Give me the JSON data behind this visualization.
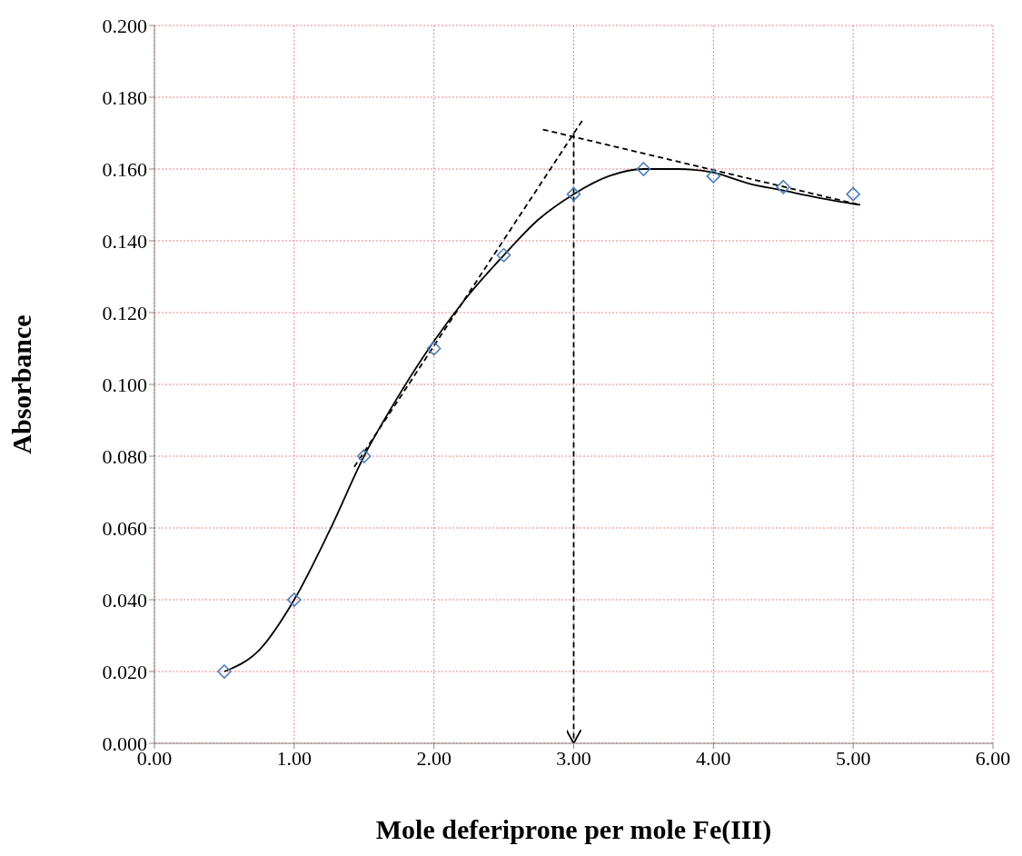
{
  "chart_data": {
    "type": "scatter",
    "xlabel": "Mole deferiprone per mole  Fe(III)",
    "ylabel": "Absorbance",
    "xlim": [
      0,
      6
    ],
    "ylim": [
      0,
      0.2
    ],
    "xticks": [
      {
        "value": 0,
        "label": "0.00"
      },
      {
        "value": 1,
        "label": "1.00"
      },
      {
        "value": 2,
        "label": "2.00"
      },
      {
        "value": 3,
        "label": "3.00"
      },
      {
        "value": 4,
        "label": "4.00"
      },
      {
        "value": 5,
        "label": "5.00"
      },
      {
        "value": 6,
        "label": "6.00"
      }
    ],
    "yticks": [
      {
        "value": 0,
        "label": "0.000"
      },
      {
        "value": 0.02,
        "label": "0.020"
      },
      {
        "value": 0.04,
        "label": "0.040"
      },
      {
        "value": 0.06,
        "label": "0.060"
      },
      {
        "value": 0.08,
        "label": "0.080"
      },
      {
        "value": 0.1,
        "label": "0.100"
      },
      {
        "value": 0.12,
        "label": "0.120"
      },
      {
        "value": 0.14,
        "label": "0.140"
      },
      {
        "value": 0.16,
        "label": "0.160"
      },
      {
        "value": 0.18,
        "label": "0.180"
      },
      {
        "value": 0.2,
        "label": "0.200"
      }
    ],
    "grid": true,
    "series": [
      {
        "marker": "diamond",
        "color": "#4a7ebb",
        "x": [
          0.5,
          1,
          1.5,
          2,
          2.5,
          3,
          3.5,
          4,
          4.5,
          5
        ],
        "values": [
          0.02,
          0.04,
          0.08,
          0.11,
          0.136,
          0.153,
          0.16,
          0.158,
          0.155,
          0.153
        ]
      },
      {
        "type": "line",
        "marker": "none",
        "line_style": "solid",
        "color": "#000000",
        "x": [
          0.5,
          0.75,
          1,
          1.25,
          1.5,
          1.75,
          2,
          2.25,
          2.5,
          2.75,
          3,
          3.25,
          3.5,
          3.75,
          4,
          4.25,
          4.5,
          4.75,
          5.05
        ],
        "values": [
          0.02,
          0.026,
          0.04,
          0.059,
          0.08,
          0.097,
          0.112,
          0.125,
          0.136,
          0.146,
          0.153,
          0.158,
          0.16,
          0.16,
          0.159,
          0.156,
          0.154,
          0.152,
          0.15
        ]
      },
      {
        "type": "line",
        "marker": "none",
        "line_style": "dashed",
        "color": "#000000",
        "x": [
          1.43,
          3.07
        ],
        "values": [
          0.077,
          0.174
        ]
      },
      {
        "type": "line",
        "marker": "none",
        "line_style": "dashed",
        "color": "#000000",
        "x": [
          2.78,
          5.05
        ],
        "values": [
          0.171,
          0.15
        ]
      },
      {
        "type": "line",
        "marker": "none",
        "line_style": "dashed",
        "color": "#000000",
        "x": [
          3,
          3
        ],
        "values": [
          0.17,
          0
        ]
      }
    ]
  }
}
